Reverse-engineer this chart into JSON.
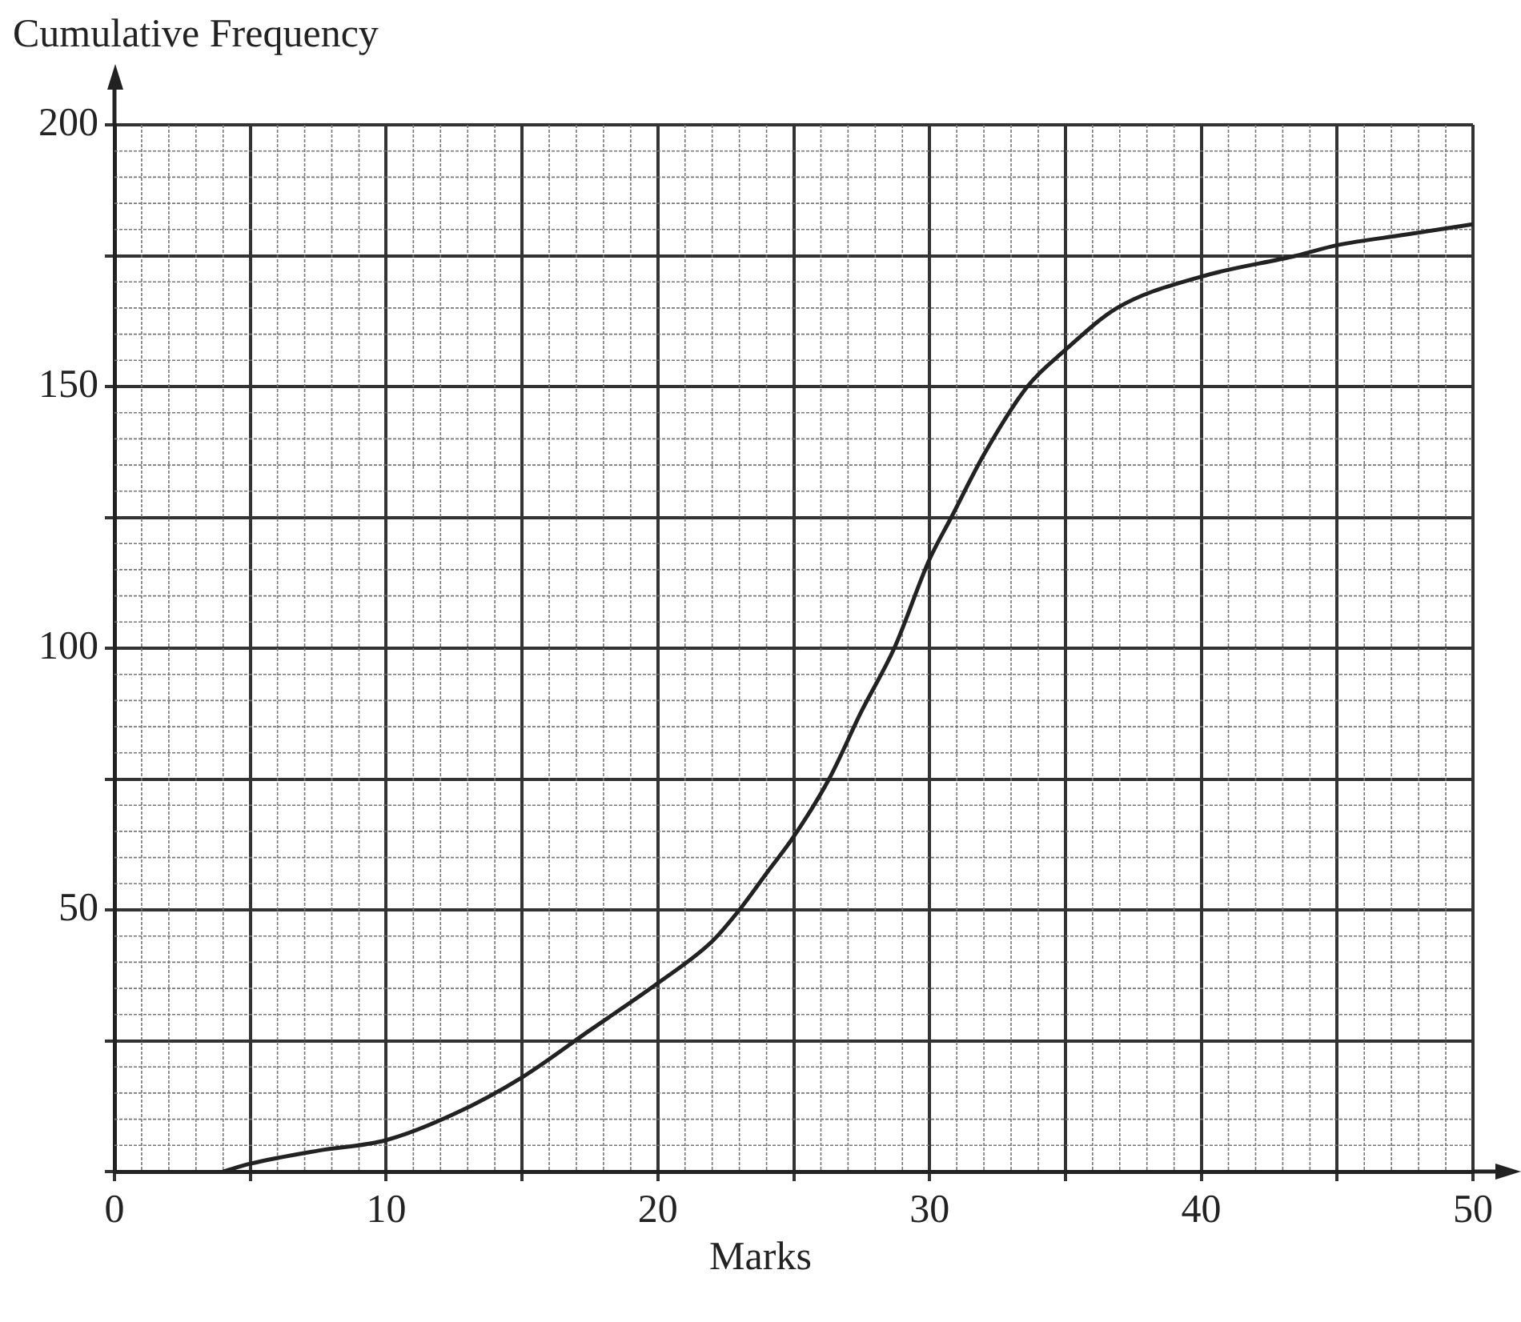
{
  "chart_data": {
    "type": "line",
    "xlabel": "Marks",
    "ylabel": "Cumulative Frequency",
    "x": [
      4,
      5,
      7.5,
      10,
      12.5,
      15,
      17.5,
      20,
      22,
      23,
      24,
      25,
      26.3,
      27.5,
      28.7,
      30,
      30.8,
      32,
      33.6,
      35,
      36.9,
      40,
      43.5,
      45,
      47.5,
      50
    ],
    "series": [
      {
        "color": "#222222",
        "values": [
          0,
          1.5,
          4,
          6,
          11,
          18,
          27,
          36,
          44,
          50,
          57,
          64,
          75,
          88,
          100,
          117,
          125,
          137,
          150,
          157,
          165,
          171,
          175,
          177,
          179,
          181
        ]
      }
    ],
    "xlim": [
      0,
      50
    ],
    "ylim": [
      0,
      200
    ],
    "xticks": [
      0,
      {
        "value": 5,
        "label": null
      },
      10,
      {
        "value": 15,
        "label": null
      },
      20,
      {
        "value": 25,
        "label": null
      },
      30,
      {
        "value": 35,
        "label": null
      },
      40,
      {
        "value": 45,
        "label": null
      },
      50
    ],
    "yticks": [
      {
        "value": 0,
        "label": null
      },
      {
        "value": 25,
        "label": null
      },
      50,
      {
        "value": 75,
        "label": null
      },
      100,
      {
        "value": 125,
        "label": null
      },
      150,
      {
        "value": 175,
        "label": null
      },
      200
    ],
    "grid": true,
    "legend": false,
    "marker": "none",
    "line_style": "solid"
  }
}
